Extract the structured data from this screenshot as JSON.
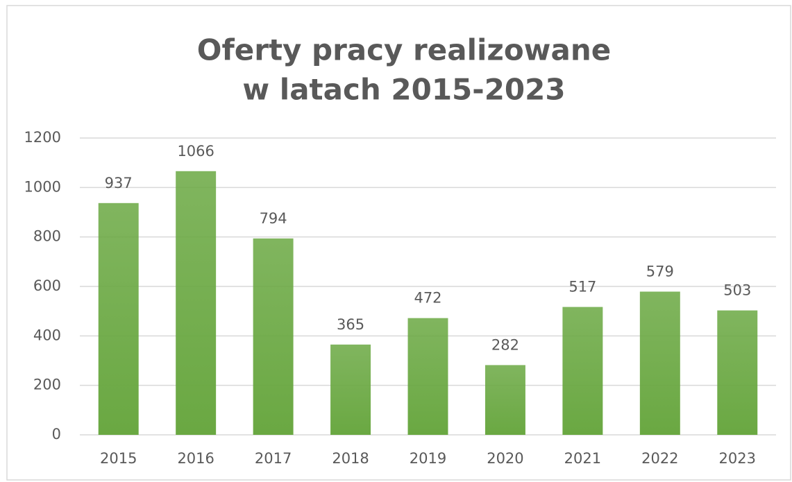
{
  "chart_data": {
    "type": "bar",
    "title": [
      "Oferty pracy realizowane",
      "w latach 2015-2023"
    ],
    "categories": [
      "2015",
      "2016",
      "2017",
      "2018",
      "2019",
      "2020",
      "2021",
      "2022",
      "2023"
    ],
    "values": [
      937,
      1066,
      794,
      365,
      472,
      282,
      517,
      579,
      503
    ],
    "color": "#6aa842",
    "ylim": [
      0,
      1200
    ],
    "yticks": [
      0,
      200,
      400,
      600,
      800,
      1000,
      1200
    ],
    "grid": true
  }
}
